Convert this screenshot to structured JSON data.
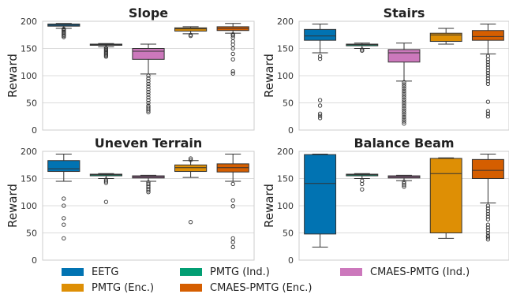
{
  "chart_data": [
    {
      "type": "box",
      "title": "Slope",
      "ylabel": "Reward",
      "ylim": [
        0,
        200
      ],
      "yticks": [
        0,
        50,
        100,
        150,
        200
      ],
      "boxes": [
        {
          "series": "EETG",
          "whislo": 187,
          "q1": 191,
          "med": 193,
          "q3": 195,
          "whishi": 196,
          "fliers": [
            186,
            185,
            183,
            181,
            179,
            177,
            175,
            173,
            171
          ]
        },
        {
          "series": "PMTG (Ind.)",
          "whislo": 153,
          "q1": 156,
          "med": 157,
          "q3": 158,
          "whishi": 159,
          "fliers": [
            151,
            149,
            147,
            145,
            143,
            141,
            139,
            137,
            135
          ]
        },
        {
          "series": "CMAES-PMTG (Ind.)",
          "whislo": 103,
          "q1": 130,
          "med": 145,
          "q3": 150,
          "whishi": 158,
          "fliers": [
            100,
            95,
            90,
            85,
            80,
            75,
            70,
            65,
            60,
            55,
            50,
            45,
            42,
            39,
            36,
            33
          ]
        },
        {
          "series": "PMTG (Enc.)",
          "whislo": 177,
          "q1": 182,
          "med": 186,
          "q3": 188,
          "whishi": 190,
          "fliers": [
            175,
            173
          ]
        },
        {
          "series": "CMAES-PMTG (Enc.)",
          "whislo": 178,
          "q1": 183,
          "med": 187,
          "q3": 190,
          "whishi": 196,
          "fliers": [
            176,
            174,
            170,
            163,
            157,
            150,
            140,
            130,
            108,
            104
          ]
        }
      ]
    },
    {
      "type": "box",
      "title": "Stairs",
      "ylabel": "Reward",
      "ylim": [
        0,
        200
      ],
      "yticks": [
        0,
        50,
        100,
        150,
        200
      ],
      "boxes": [
        {
          "series": "EETG",
          "whislo": 142,
          "q1": 165,
          "med": 173,
          "q3": 185,
          "whishi": 195,
          "fliers": [
            136,
            131,
            55,
            45,
            30,
            26,
            22
          ]
        },
        {
          "series": "PMTG (Ind.)",
          "whislo": 150,
          "q1": 155,
          "med": 157,
          "q3": 158,
          "whishi": 160,
          "fliers": [
            148,
            146
          ]
        },
        {
          "series": "CMAES-PMTG (Ind.)",
          "whislo": 90,
          "q1": 125,
          "med": 142,
          "q3": 148,
          "whishi": 160,
          "fliers": [
            88,
            84,
            80,
            76,
            72,
            68,
            64,
            60,
            56,
            52,
            48,
            44,
            40,
            36,
            32,
            28,
            24,
            20,
            16,
            12
          ]
        },
        {
          "series": "PMTG (Enc.)",
          "whislo": 158,
          "q1": 163,
          "med": 175,
          "q3": 178,
          "whishi": 187,
          "fliers": []
        },
        {
          "series": "CMAES-PMTG (Enc.)",
          "whislo": 140,
          "q1": 165,
          "med": 172,
          "q3": 183,
          "whishi": 195,
          "fliers": [
            136,
            130,
            125,
            120,
            115,
            110,
            105,
            100,
            95,
            90,
            85,
            52,
            35,
            30,
            25
          ]
        }
      ]
    },
    {
      "type": "box",
      "title": "Uneven Terrain",
      "ylabel": "Reward",
      "ylim": [
        0,
        200
      ],
      "yticks": [
        0,
        50,
        100,
        150,
        200
      ],
      "boxes": [
        {
          "series": "EETG",
          "whislo": 145,
          "q1": 163,
          "med": 168,
          "q3": 183,
          "whishi": 195,
          "fliers": [
            113,
            100,
            77,
            65,
            40
          ]
        },
        {
          "series": "PMTG (Ind.)",
          "whislo": 150,
          "q1": 155,
          "med": 157,
          "q3": 158,
          "whishi": 159,
          "fliers": [
            148,
            145,
            142,
            107
          ]
        },
        {
          "series": "CMAES-PMTG (Ind.)",
          "whislo": 145,
          "q1": 151,
          "med": 153,
          "q3": 155,
          "whishi": 156,
          "fliers": [
            143,
            140,
            137,
            134,
            131,
            128,
            125
          ]
        },
        {
          "series": "PMTG (Enc.)",
          "whislo": 152,
          "q1": 163,
          "med": 170,
          "q3": 175,
          "whishi": 183,
          "fliers": [
            187,
            184,
            70
          ]
        },
        {
          "series": "CMAES-PMTG (Enc.)",
          "whislo": 145,
          "q1": 162,
          "med": 170,
          "q3": 177,
          "whishi": 195,
          "fliers": [
            140,
            110,
            99,
            40,
            33,
            24
          ]
        }
      ]
    },
    {
      "type": "box",
      "title": "Balance Beam",
      "ylabel": "Reward",
      "ylim": [
        0,
        200
      ],
      "yticks": [
        0,
        50,
        100,
        150,
        200
      ],
      "boxes": [
        {
          "series": "EETG",
          "whislo": 24,
          "q1": 48,
          "med": 141,
          "q3": 194,
          "whishi": 195,
          "fliers": []
        },
        {
          "series": "PMTG (Ind.)",
          "whislo": 150,
          "q1": 155,
          "med": 157,
          "q3": 158,
          "whishi": 159,
          "fliers": [
            146,
            140,
            130
          ]
        },
        {
          "series": "CMAES-PMTG (Ind.)",
          "whislo": 146,
          "q1": 151,
          "med": 153,
          "q3": 155,
          "whishi": 156,
          "fliers": [
            144,
            141,
            138,
            135
          ]
        },
        {
          "series": "PMTG (Enc.)",
          "whislo": 40,
          "q1": 50,
          "med": 159,
          "q3": 187,
          "whishi": 188,
          "fliers": []
        },
        {
          "series": "CMAES-PMTG (Enc.)",
          "whislo": 105,
          "q1": 150,
          "med": 165,
          "q3": 185,
          "whishi": 195,
          "fliers": [
            100,
            95,
            90,
            85,
            80,
            75,
            65,
            60,
            55,
            50,
            45,
            42,
            38
          ]
        }
      ]
    }
  ],
  "legend": [
    {
      "label": "EETG",
      "color": "#0173b2"
    },
    {
      "label": "PMTG (Ind.)",
      "color": "#029e73"
    },
    {
      "label": "CMAES-PMTG (Ind.)",
      "color": "#cc78bc"
    },
    {
      "label": "PMTG (Enc.)",
      "color": "#de8f05"
    },
    {
      "label": "CMAES-PMTG (Enc.)",
      "color": "#d55e00"
    }
  ]
}
